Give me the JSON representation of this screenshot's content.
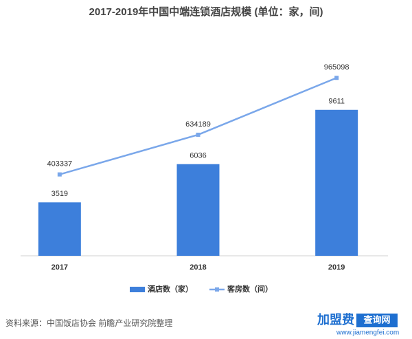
{
  "chart_data": {
    "type": "bar-line",
    "title": "2017-2019年中国中端连锁酒店规模 (单位：家，间)",
    "categories": [
      "2017",
      "2018",
      "2019"
    ],
    "series": [
      {
        "name": "酒店数（家）",
        "type": "bar",
        "color": "#3d7fdb",
        "values": [
          3519,
          6036,
          9611
        ]
      },
      {
        "name": "客房数（间）",
        "type": "line",
        "axis": "y2",
        "color": "#7aa7ea",
        "values": [
          403337,
          634189,
          965098
        ]
      }
    ],
    "ylim": [
      0,
      12000
    ],
    "y2lim": [
      -70000,
      990000
    ],
    "legend": "bottom"
  },
  "source": "资料来源：中国饭店协会 前瞻产业研究院整理",
  "logo": {
    "brand": "加盟费",
    "tag": "查询网",
    "url": "www.jiamengfei.com"
  }
}
